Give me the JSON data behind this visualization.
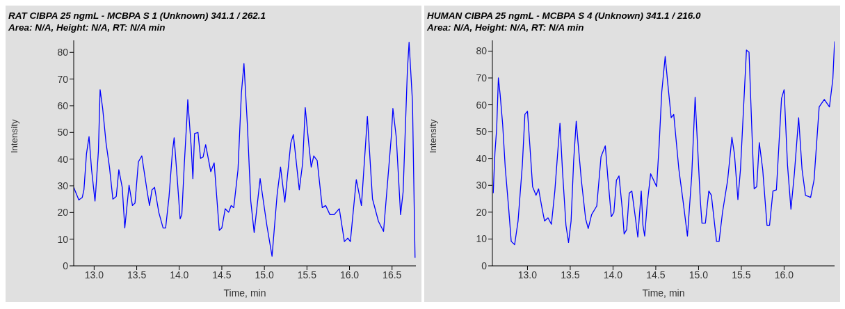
{
  "chart_data": [
    {
      "type": "line",
      "title": "RAT CIBPA 25 ngmL - MCBPA S 1 (Unknown) 341.1 / 262.1",
      "subtitle": "Area: N/A, Height: N/A, RT: N/A min",
      "xlabel": "Time, min",
      "ylabel": "Intensity",
      "color": "#0000ff",
      "x": [
        12.76,
        12.82,
        12.86,
        12.88,
        12.91,
        12.94,
        12.97,
        13.01,
        13.02,
        13.05,
        13.07,
        13.1,
        13.14,
        13.18,
        13.22,
        13.26,
        13.29,
        13.33,
        13.36,
        13.41,
        13.45,
        13.48,
        13.52,
        13.56,
        13.62,
        13.65,
        13.68,
        13.71,
        13.76,
        13.81,
        13.84,
        13.88,
        13.92,
        13.94,
        13.98,
        14.01,
        14.03,
        14.06,
        14.09,
        14.1,
        14.14,
        14.16,
        14.18,
        14.22,
        14.25,
        14.28,
        14.31,
        14.37,
        14.41,
        14.47,
        14.5,
        14.54,
        14.58,
        14.61,
        14.64,
        14.69,
        14.73,
        14.76,
        14.8,
        14.84,
        14.88,
        14.95,
        15.03,
        15.09,
        15.15,
        15.19,
        15.24,
        15.31,
        15.34,
        15.39,
        15.41,
        15.45,
        15.48,
        15.52,
        15.55,
        15.58,
        15.62,
        15.68,
        15.72,
        15.77,
        15.82,
        15.88,
        15.94,
        15.98,
        16.01,
        16.08,
        16.14,
        16.19,
        16.21,
        16.27,
        16.34,
        16.4,
        16.49,
        16.51,
        16.55,
        16.6,
        16.63,
        16.68,
        16.7,
        16.74,
        16.77
      ],
      "values": [
        29.4,
        24.7,
        25.6,
        28.5,
        42,
        48.4,
        36,
        24.3,
        28.5,
        43,
        66,
        59,
        46,
        37,
        25,
        26,
        36,
        29.4,
        14.2,
        30.2,
        22.6,
        23.5,
        39,
        41.2,
        28.5,
        22.6,
        28.5,
        29.4,
        20,
        14.2,
        14.2,
        26,
        42.9,
        48,
        31,
        17.6,
        19.2,
        38.6,
        55.5,
        62.3,
        44.6,
        32.7,
        49.6,
        50,
        40.3,
        40.8,
        45.4,
        35.3,
        38.6,
        13.3,
        14.2,
        21.4,
        20.1,
        22.6,
        21.8,
        36,
        64.8,
        75.8,
        53,
        24.3,
        12.5,
        32.7,
        15,
        3.6,
        26.8,
        37,
        23.9,
        46,
        49.2,
        34.4,
        28.5,
        38.6,
        59.3,
        46.2,
        37,
        41.2,
        39.5,
        21.8,
        22.6,
        19.2,
        19.2,
        21.4,
        9.1,
        10.4,
        9.1,
        32.3,
        22.6,
        46.2,
        56,
        25.1,
        16.7,
        12.9,
        48,
        59,
        48,
        19.2,
        27.7,
        73.2,
        83.8,
        61.4,
        3
      ],
      "xlim": [
        12.76,
        16.78
      ],
      "ylim": [
        0,
        84.5
      ],
      "yticks": [
        0,
        10,
        20,
        30,
        40,
        50,
        60,
        70,
        80
      ],
      "xticks": [
        {
          "value": 13,
          "label": "13.0"
        },
        {
          "value": 13.5,
          "label": "13.5"
        },
        {
          "value": 14,
          "label": "14.0"
        },
        {
          "value": 14.5,
          "label": "14.5"
        },
        {
          "value": 15,
          "label": "15.0"
        },
        {
          "value": 15.5,
          "label": "15.5"
        },
        {
          "value": 16,
          "label": "16.0"
        },
        {
          "value": 16.5,
          "label": "16.5"
        }
      ]
    },
    {
      "type": "line",
      "title": "HUMAN CIBPA 25 ngmL - MCBPA S 4 (Unknown) 341.1 / 216.0",
      "subtitle": "Area: N/A, Height: N/A, RT: N/A min",
      "xlabel": "Time, min",
      "ylabel": "Intensity",
      "color": "#0000ff",
      "x": [
        12.6,
        12.61,
        12.62,
        12.64,
        12.66,
        12.68,
        12.71,
        12.74,
        12.78,
        12.81,
        12.85,
        12.89,
        12.94,
        12.97,
        13.0,
        13.03,
        13.06,
        13.1,
        13.13,
        13.17,
        13.2,
        13.24,
        13.28,
        13.32,
        13.35,
        13.38,
        13.41,
        13.45,
        13.48,
        13.51,
        13.54,
        13.57,
        13.59,
        13.63,
        13.68,
        13.71,
        13.75,
        13.81,
        13.86,
        13.91,
        13.94,
        13.98,
        14.01,
        14.04,
        14.07,
        14.11,
        14.13,
        14.16,
        14.19,
        14.22,
        14.26,
        14.29,
        14.33,
        14.35,
        14.37,
        14.4,
        14.44,
        14.51,
        14.54,
        14.57,
        14.61,
        14.64,
        14.68,
        14.71,
        14.77,
        14.82,
        14.87,
        14.92,
        14.96,
        15.02,
        15.04,
        15.08,
        15.12,
        15.15,
        15.21,
        15.24,
        15.28,
        15.34,
        15.39,
        15.42,
        15.46,
        15.49,
        15.56,
        15.59,
        15.63,
        15.65,
        15.68,
        15.71,
        15.75,
        15.8,
        15.83,
        15.87,
        15.91,
        15.97,
        16.0,
        16.04,
        16.08,
        16.12,
        16.17,
        16.21,
        16.25,
        16.31,
        16.35,
        16.41,
        16.47,
        16.53,
        16.57,
        16.59
      ],
      "values": [
        27.1,
        35.1,
        42.3,
        51.1,
        70,
        64,
        52.7,
        36.7,
        21.5,
        9.1,
        7.9,
        16.7,
        37.5,
        56.4,
        57.6,
        43.9,
        29.5,
        26.3,
        28.7,
        21.5,
        16.7,
        17.9,
        15.5,
        27.9,
        40.7,
        53.1,
        35.1,
        15.1,
        8.7,
        16.7,
        39.1,
        53.9,
        46.3,
        31.9,
        17.5,
        13.9,
        19.1,
        22.3,
        40.7,
        44.7,
        32.7,
        18.3,
        19.9,
        31.9,
        33.5,
        20.7,
        11.9,
        13.5,
        27.1,
        27.9,
        18.3,
        10.7,
        27.9,
        15.1,
        11.1,
        23.1,
        34.3,
        29.5,
        45.5,
        64.8,
        78,
        68,
        55.2,
        56.4,
        35.9,
        23.9,
        11.1,
        33.5,
        62.8,
        24.7,
        15.9,
        15.9,
        27.9,
        26.3,
        9.1,
        9.1,
        19.9,
        31.9,
        47.9,
        41.5,
        24.7,
        35.9,
        80.4,
        79.6,
        44.7,
        28.7,
        29.5,
        45.9,
        35.9,
        15.1,
        15.1,
        27.9,
        28.3,
        62.4,
        65.6,
        37.5,
        21.1,
        34.3,
        55.2,
        35.9,
        26.3,
        25.5,
        31.9,
        59.2,
        62,
        59.2,
        69.6,
        83.6
      ],
      "xlim": [
        12.59,
        16.59
      ],
      "ylim": [
        0,
        84
      ],
      "yticks": [
        0,
        10,
        20,
        30,
        40,
        50,
        60,
        70,
        80
      ],
      "xticks": [
        {
          "value": 13,
          "label": "13.0"
        },
        {
          "value": 13.5,
          "label": "13.5"
        },
        {
          "value": 14,
          "label": "14.0"
        },
        {
          "value": 14.5,
          "label": "14.5"
        },
        {
          "value": 15,
          "label": "15.0"
        },
        {
          "value": 15.5,
          "label": "15.5"
        },
        {
          "value": 16,
          "label": "16.0"
        }
      ]
    }
  ]
}
